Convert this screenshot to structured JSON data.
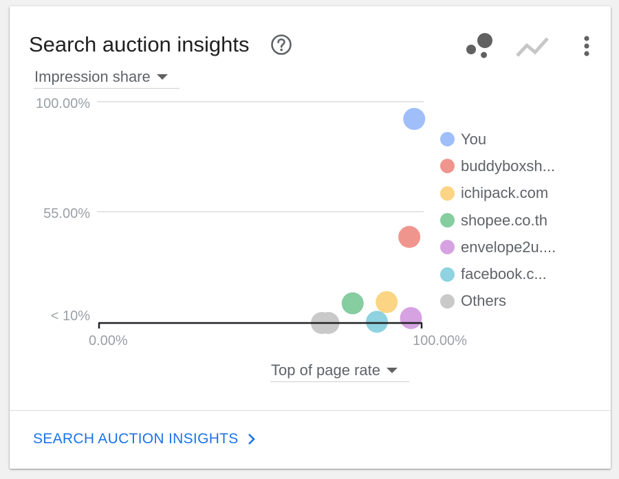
{
  "card": {
    "title": "Search auction insights",
    "footer_link": "SEARCH AUCTION INSIGHTS"
  },
  "icons": {
    "help": "help-circle-icon",
    "scatter": "scatter-chart-icon",
    "line": "line-chart-icon",
    "more": "more-vert-icon",
    "chevron": "chevron-right-icon"
  },
  "colors": {
    "link": "#1a73e8",
    "scatter_icon": "#616161",
    "line_icon": "#c7c7c7"
  },
  "controls": {
    "y_metric": "Impression share",
    "x_metric": "Top of page rate"
  },
  "chart_data": {
    "type": "scatter",
    "title": "",
    "xlabel": "Top of page rate",
    "ylabel": "Impression share",
    "x_ticks": [
      "0.00%",
      "100.00%"
    ],
    "y_ticks": [
      "< 10%",
      "55.00%",
      "100.00%"
    ],
    "xlim": [
      0,
      100
    ],
    "ylim": [
      10,
      100
    ],
    "grid": true,
    "legend_position": "right",
    "series": [
      {
        "name": "You",
        "color": "#9fbefa",
        "points": [
          {
            "x": 97.5,
            "y": 93
          }
        ]
      },
      {
        "name": "buddyboxsh...",
        "color": "#f0958d",
        "points": [
          {
            "x": 96,
            "y": 45
          }
        ]
      },
      {
        "name": "ichipack.com",
        "color": "#fbd484",
        "points": [
          {
            "x": 89,
            "y": 18.5
          }
        ]
      },
      {
        "name": "shopee.co.th",
        "color": "#86cda0",
        "points": [
          {
            "x": 78.5,
            "y": 18
          }
        ]
      },
      {
        "name": "envelope2u....",
        "color": "#d6a2e1",
        "points": [
          {
            "x": 96.5,
            "y": 12
          }
        ]
      },
      {
        "name": "facebook.c...",
        "color": "#8fd2e0",
        "points": [
          {
            "x": 86,
            "y": 10.5
          }
        ]
      },
      {
        "name": "Others",
        "color": "#c9c9c9",
        "points": [
          {
            "x": 69,
            "y": 10
          },
          {
            "x": 71,
            "y": 10
          }
        ]
      }
    ]
  }
}
